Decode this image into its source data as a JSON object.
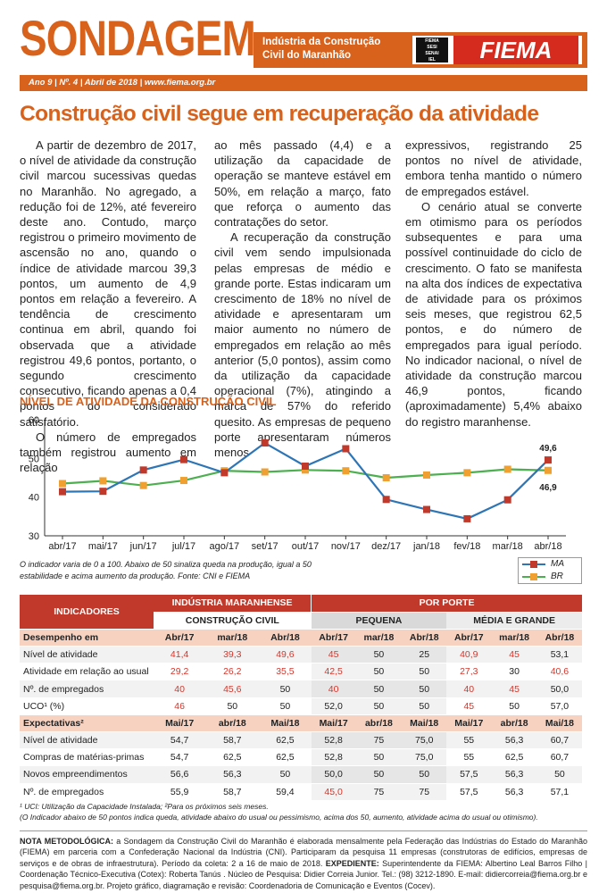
{
  "header": {
    "brand": "SONDAGEM",
    "subtitle_line1": "Indústria da Construção",
    "subtitle_line2": "Civil do Maranhão",
    "logo_small": [
      "FIEMA",
      "SESI",
      "SENAI",
      "IEL"
    ],
    "logo": "FIEMA",
    "meta": "Ano 9 | Nº. 4 | Abril de 2018 | www.fiema.org.br"
  },
  "headline": "Construção civil segue em recuperação da atividade",
  "columns": {
    "c1_p1": "A partir de dezembro de 2017, o nível de atividade da construção civil marcou sucessivas quedas no Maranhão. No agregado, a redução foi de 12%, até fevereiro deste ano. Contudo, março registrou o primeiro movimento de ascensão no ano, quando o índice de atividade marcou 39,3 pontos, um aumento de 4,9 pontos em relação a fevereiro. A tendência de crescimento continua em abril, quando foi observada que a atividade registrou 49,6 pontos, portanto, o segundo crescimento consecutivo, ficando apenas a 0,4 pontos do considerado satisfatório.",
    "c1_p2": "O número de empregados também registrou aumento em relação",
    "c2_p1": "ao mês passado (4,4) e a utilização da capacidade de operação se manteve estável em 50%, em relação a março, fato que reforça o aumento das contratações do setor.",
    "c2_p2": "A recuperação da construção civil vem sendo impulsionada pelas empresas de médio e grande porte. Estas indicaram um crescimento de 18% no nível de atividade e apresentaram um maior aumento no número de empregados em relação ao mês anterior (5,0 pontos), assim como da utilização da capacidade operacional (7%), atingindo a marca de 57% do referido quesito. As empresas de pequeno porte apresentaram números menos",
    "c3_p1": "expressivos, registrando 25 pontos no nível de atividade, embora tenha mantido o número de empregados estável.",
    "c3_p2": "O cenário atual se converte em otimismo para os períodos subsequentes e para uma possível continuidade do ciclo de crescimento. O fato se manifesta na alta dos índices de expectativa de atividade para os próximos seis meses, que registrou 62,5 pontos, e do número de empregados para igual período. No indicador nacional, o nível de atividade da construção marcou 46,9 pontos, ficando (aproximadamente) 5,4% abaixo do registro maranhense."
  },
  "chart_title": "NÍVEL DE ATIVIDADE DA CONSTRUÇÃO CIVIL",
  "chart_data": {
    "type": "line",
    "x": [
      "abr/17",
      "mai/17",
      "jun/17",
      "jul/17",
      "ago/17",
      "set/17",
      "out/17",
      "nov/17",
      "dez/17",
      "jan/18",
      "fev/18",
      "mar/18",
      "abr/18"
    ],
    "ylim": [
      30,
      60
    ],
    "yticks": [
      30,
      40,
      50,
      60
    ],
    "grid": false,
    "legend_position": "bottom-right",
    "series": [
      {
        "name": "MA",
        "color": "#2e75b6",
        "marker_color": "#c0392b",
        "values": [
          41.4,
          41.5,
          47.0,
          49.7,
          46.3,
          54.0,
          48.0,
          52.5,
          39.4,
          36.8,
          34.4,
          39.3,
          49.6
        ]
      },
      {
        "name": "BR",
        "color": "#4caf50",
        "marker_color": "#f0a030",
        "values": [
          43.5,
          44.2,
          43.0,
          44.3,
          46.8,
          46.5,
          47.0,
          46.8,
          45.0,
          45.7,
          46.3,
          47.2,
          46.9
        ]
      }
    ],
    "annotations": [
      {
        "series": "MA",
        "index": 12,
        "text": "49,6"
      },
      {
        "series": "BR",
        "index": 12,
        "text": "46,9"
      }
    ]
  },
  "chart_note": "O indicador varia de 0 a 100. Abaixo de 50 sinaliza queda na produção, igual a 50 estabilidade e acima aumento da produção. Fonte: CNI e FIEMA",
  "table": {
    "h_indicadores": "INDICADORES",
    "h_industria": "INDÚSTRIA MARANHENSE",
    "h_porte": "POR PORTE",
    "h_construcao": "CONSTRUÇÃO CIVIL",
    "h_pequena": "PEQUENA",
    "h_media": "MÉDIA E GRANDE",
    "sec1": {
      "label": "Desempenho em",
      "cols": [
        "Abr/17",
        "mar/18",
        "Abr/18",
        "Abr/17",
        "mar/18",
        "Abr/18",
        "Abr/17",
        "mar/18",
        "Abr/18"
      ]
    },
    "sec1_rows": [
      {
        "label": "Nível de atividade",
        "values": [
          "41,4",
          "39,3",
          "49,6",
          "45",
          "50",
          "25",
          "40,9",
          "45",
          "53,1"
        ],
        "neg": [
          1,
          1,
          1,
          1,
          0,
          0,
          1,
          1,
          0
        ]
      },
      {
        "label": "Atividade em relação ao usual",
        "values": [
          "29,2",
          "26,2",
          "35,5",
          "42,5",
          "50",
          "50",
          "27,3",
          "30",
          "40,6"
        ],
        "neg": [
          1,
          1,
          1,
          1,
          0,
          0,
          1,
          0,
          1
        ]
      },
      {
        "label": "Nº. de empregados",
        "values": [
          "40",
          "45,6",
          "50",
          "40",
          "50",
          "50",
          "40",
          "45",
          "50,0"
        ],
        "neg": [
          1,
          1,
          0,
          1,
          0,
          0,
          1,
          1,
          0
        ]
      },
      {
        "label": "UCO¹ (%)",
        "values": [
          "46",
          "50",
          "50",
          "52,0",
          "50",
          "50",
          "45",
          "50",
          "57,0"
        ],
        "neg": [
          1,
          0,
          0,
          0,
          0,
          0,
          1,
          0,
          0
        ]
      }
    ],
    "sec2": {
      "label": "Expectativas²",
      "cols": [
        "Mai/17",
        "abr/18",
        "Mai/18",
        "Mai/17",
        "abr/18",
        "Mai/18",
        "Mai/17",
        "abr/18",
        "Mai/18"
      ]
    },
    "sec2_rows": [
      {
        "label": "Nível de atividade",
        "values": [
          "54,7",
          "58,7",
          "62,5",
          "52,8",
          "75",
          "75,0",
          "55",
          "56,3",
          "60,7"
        ],
        "neg": [
          0,
          0,
          0,
          0,
          0,
          0,
          0,
          0,
          0
        ]
      },
      {
        "label": "Compras de matérias-primas",
        "values": [
          "54,7",
          "62,5",
          "62,5",
          "52,8",
          "50",
          "75,0",
          "55",
          "62,5",
          "60,7"
        ],
        "neg": [
          0,
          0,
          0,
          0,
          0,
          0,
          0,
          0,
          0
        ]
      },
      {
        "label": "Novos empreendimentos",
        "values": [
          "56,6",
          "56,3",
          "50",
          "50,0",
          "50",
          "50",
          "57,5",
          "56,3",
          "50"
        ],
        "neg": [
          0,
          0,
          0,
          0,
          0,
          0,
          0,
          0,
          0
        ]
      },
      {
        "label": "Nº. de empregados",
        "values": [
          "55,9",
          "58,7",
          "59,4",
          "45,0",
          "75",
          "75",
          "57,5",
          "56,3",
          "57,1"
        ],
        "neg": [
          0,
          0,
          0,
          1,
          0,
          0,
          0,
          0,
          0
        ]
      }
    ]
  },
  "footnote1": "¹ UCI: Utilização da Capacidade Instalada; ²Para os próximos seis meses.",
  "footnote2": "(O Indicador abaixo de 50 pontos indica queda, atividade abaixo do usual ou pessimismo, acima dos 50, aumento, atividade acima do usual ou otimismo).",
  "method_label": "NOTA METODOLÓGICA:",
  "method_text": "a Sondagem da Construção Civil do Maranhão é elaborada mensalmente pela Federação das Indústrias do Estado do Maranhão (FIEMA) em parceria com a Confederação Nacional da Indústria (CNI). Participaram da pesquisa 11 empresas (construtoras de edifícios, empresas de serviços e de obras de infraestrutura). Período da coleta: 2 a 16 de maio de 2018.",
  "exp_label": "EXPEDIENTE:",
  "exp_text": "Superintendente da FIEMA: Albertino Leal Barros Filho | Coordenação Técnico-Executiva (Cotex): Roberta Tanús . Núcleo de Pesquisa: Didier Correia Junior. Tel.: (98) 3212-1890. E-mail: didiercorreia@fiema.org.br e pesquisa@fiema.org.br. Projeto gráfico, diagramação e revisão: Coordenadoria de Comunicação e Eventos (Cocev)."
}
